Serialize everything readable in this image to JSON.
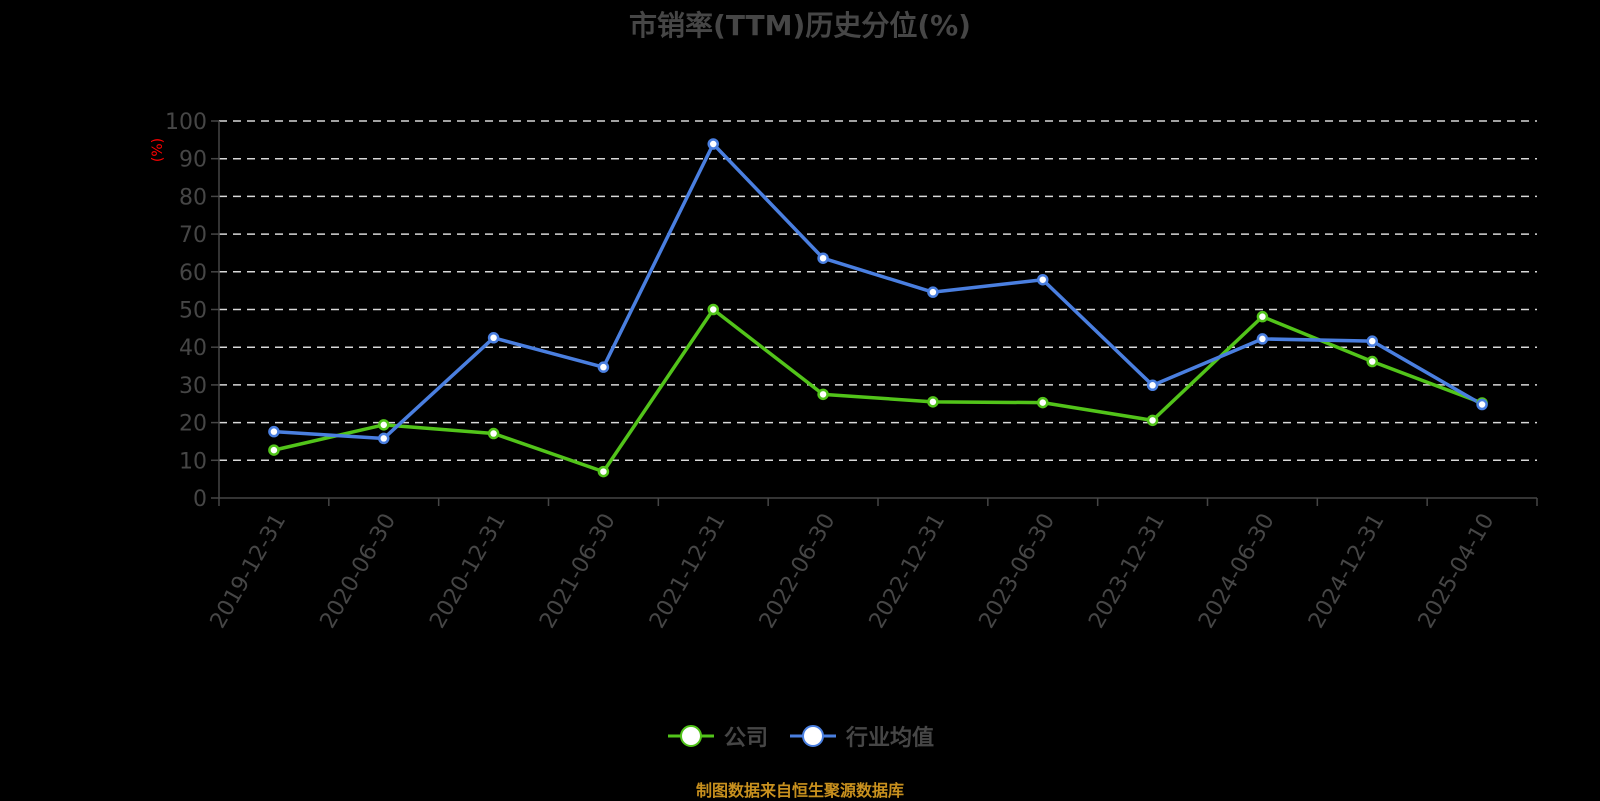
{
  "title": "市销率(TTM)历史分位(%)",
  "footer": "制图数据来自恒生聚源数据库",
  "legend": [
    {
      "label": "公司",
      "color": "#52c41a"
    },
    {
      "label": "行业均值",
      "color": "#4a7fe0"
    }
  ],
  "colors": {
    "background": "#000000",
    "grid": "#d8d8d8",
    "axis": "#464646",
    "unit": "#ff0000",
    "footer": "#c8901e"
  },
  "chart_data": {
    "type": "line",
    "title": "市销率(TTM)历史分位(%)",
    "xlabel": "",
    "ylabel": "(%)",
    "ylim": [
      0,
      100
    ],
    "yticks": [
      0,
      10,
      20,
      30,
      40,
      50,
      60,
      70,
      80,
      90,
      100
    ],
    "grid": true,
    "legend_position": "bottom",
    "categories": [
      "2019-12-31",
      "2020-06-30",
      "2020-12-31",
      "2021-06-30",
      "2021-12-31",
      "2022-06-30",
      "2022-12-31",
      "2023-06-30",
      "2023-12-31",
      "2024-06-30",
      "2024-12-31",
      "2025-04-10"
    ],
    "series": [
      {
        "name": "公司",
        "color": "#52c41a",
        "values": [
          12.7,
          19.4,
          17.1,
          7.0,
          50.0,
          27.5,
          25.5,
          25.3,
          20.6,
          48.1,
          36.2,
          25.2
        ]
      },
      {
        "name": "行业均值",
        "color": "#4a7fe0",
        "values": [
          17.6,
          15.8,
          42.5,
          34.7,
          93.9,
          63.6,
          54.6,
          57.9,
          29.9,
          42.2,
          41.6,
          24.8
        ]
      }
    ]
  }
}
